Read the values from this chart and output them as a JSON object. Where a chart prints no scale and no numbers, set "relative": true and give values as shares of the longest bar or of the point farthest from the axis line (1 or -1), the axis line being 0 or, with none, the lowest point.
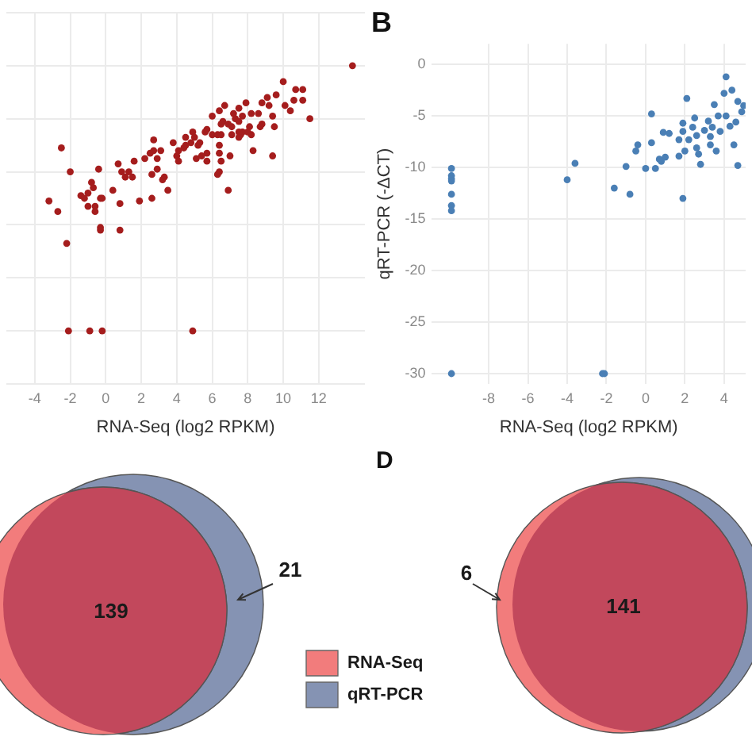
{
  "chart_data": [
    {
      "type": "scatter",
      "xlabel": "RNA-Seq (log2 RPKM)",
      "relative": true,
      "xlim": [
        -5.6,
        14.6
      ],
      "xticks": [
        -4,
        -2,
        0,
        2,
        4,
        6,
        8,
        10,
        12
      ],
      "grid": true,
      "marker": "circle",
      "color": "#a51d1d",
      "x": [
        13.9,
        10.0,
        10.7,
        11.1,
        9.6,
        9.1,
        7.9,
        11.1,
        10.6,
        8.8,
        10.1,
        6.7,
        7.5,
        9.2,
        10.4,
        6.4,
        7.2,
        8.2,
        8.6,
        7.7,
        6.0,
        9.4,
        7.3,
        11.5,
        6.6,
        6.9,
        7.5,
        8.8,
        8.1,
        9.5,
        7.1,
        8.7,
        6.5,
        5.7,
        7.7,
        7.5,
        8.0,
        7.1,
        7.6,
        8.2,
        6.0,
        6.3,
        5.6,
        4.9,
        7.5,
        4.5,
        5.0,
        6.5,
        5.3,
        4.8,
        3.8,
        2.7,
        4.5,
        5.2,
        6.4,
        4.4,
        2.7,
        3.1,
        2.5,
        2.2,
        4.1,
        4.0,
        6.4,
        8.3,
        5.7,
        5.4,
        7.0,
        9.4,
        5.1,
        1.6,
        2.9,
        5.7,
        6.5,
        4.1,
        -2.5,
        0.7,
        -0.4,
        2.9,
        2.6,
        0.9,
        1.3,
        1.5,
        1.1,
        3.3,
        3.2,
        6.4,
        6.3,
        -2.0,
        -0.8,
        -0.7,
        -1.0,
        -1.4,
        -1.2,
        -0.3,
        -0.2,
        0.4,
        2.6,
        3.5,
        6.9,
        -3.2,
        -1.0,
        -0.6,
        -0.6,
        0.8,
        1.9,
        -2.7,
        -0.3,
        -0.3,
        0.8,
        -2.2,
        -2.1,
        -0.9,
        -0.2,
        4.9
      ],
      "values": [
        1.0,
        0.94,
        0.91,
        0.91,
        0.89,
        0.88,
        0.86,
        0.87,
        0.87,
        0.86,
        0.85,
        0.85,
        0.84,
        0.85,
        0.83,
        0.83,
        0.82,
        0.82,
        0.82,
        0.81,
        0.81,
        0.81,
        0.8,
        0.8,
        0.79,
        0.78,
        0.79,
        0.78,
        0.77,
        0.77,
        0.77,
        0.77,
        0.78,
        0.76,
        0.75,
        0.75,
        0.75,
        0.74,
        0.74,
        0.74,
        0.74,
        0.74,
        0.75,
        0.75,
        0.73,
        0.73,
        0.73,
        0.74,
        0.71,
        0.71,
        0.71,
        0.72,
        0.7,
        0.7,
        0.7,
        0.69,
        0.68,
        0.68,
        0.67,
        0.65,
        0.68,
        0.66,
        0.67,
        0.68,
        0.67,
        0.66,
        0.66,
        0.66,
        0.65,
        0.64,
        0.65,
        0.64,
        0.64,
        0.64,
        0.69,
        0.63,
        0.61,
        0.61,
        0.59,
        0.6,
        0.6,
        0.58,
        0.58,
        0.58,
        0.57,
        0.6,
        0.59,
        0.6,
        0.56,
        0.54,
        0.52,
        0.51,
        0.5,
        0.5,
        0.5,
        0.53,
        0.5,
        0.53,
        0.53,
        0.49,
        0.47,
        0.47,
        0.45,
        0.48,
        0.49,
        0.45,
        0.39,
        0.38,
        0.38,
        0.33,
        0,
        0,
        0,
        0
      ]
    },
    {
      "type": "scatter",
      "title": "B",
      "xlabel": "RNA-Seq (log2 RPKM)",
      "ylabel": "qRT-PCR (-ΔCT)",
      "xlim": [
        -10.9,
        5.1
      ],
      "xticks": [
        -8,
        -6,
        -4,
        -2,
        0,
        2,
        4
      ],
      "ylim": [
        -31,
        2
      ],
      "yticks": [
        0,
        -5,
        -10,
        -15,
        -20,
        -25,
        -30
      ],
      "grid": true,
      "marker": "circle",
      "color": "#4a7fb5",
      "x": [
        -9.9,
        -9.9,
        -9.9,
        -9.9,
        -9.9,
        -9.9,
        -9.9,
        -9.9,
        -2.2,
        -2.1,
        -4.0,
        -3.6,
        -1.6,
        -1.0,
        -0.8,
        -0.5,
        -0.4,
        0.0,
        0.3,
        0.3,
        0.5,
        0.7,
        0.8,
        0.9,
        1.2,
        1.0,
        1.7,
        1.9,
        1.9,
        1.9,
        2.1,
        2.0,
        2.2,
        2.4,
        2.6,
        2.6,
        2.7,
        2.8,
        3.0,
        3.2,
        3.3,
        3.4,
        3.5,
        3.6,
        3.7,
        3.8,
        4.0,
        4.1,
        4.1,
        4.3,
        4.4,
        4.5,
        4.6,
        4.7,
        4.7,
        4.9,
        5.0,
        2.5,
        1.7,
        3.3
      ],
      "values": [
        -10.1,
        -10.8,
        -11.1,
        -11.3,
        -12.6,
        -13.7,
        -14.2,
        -30.0,
        -30.0,
        -30.0,
        -11.2,
        -9.6,
        -12.0,
        -9.9,
        -12.6,
        -8.4,
        -7.8,
        -10.1,
        -4.8,
        -7.6,
        -10.1,
        -9.2,
        -9.4,
        -6.6,
        -6.7,
        -9.0,
        -8.9,
        -6.5,
        -5.7,
        -13.0,
        -3.3,
        -8.4,
        -7.3,
        -6.1,
        -8.1,
        -6.9,
        -8.7,
        -9.7,
        -6.4,
        -5.5,
        -7.0,
        -6.1,
        -3.9,
        -8.4,
        -5.0,
        -6.5,
        -2.8,
        -1.2,
        -5.0,
        -6.0,
        -2.5,
        -7.8,
        -5.6,
        -9.8,
        -3.6,
        -4.6,
        -4.0,
        -5.2,
        -7.3,
        -7.8
      ]
    },
    {
      "type": "other",
      "annotations": [
        "139",
        "21"
      ],
      "legend": "right",
      "colors": [
        "#c2485c"
      ],
      "series": [
        {
          "name": "RNA-Seq",
          "color": "#f27c7c"
        },
        {
          "name": "qRT-PCR",
          "color": "#8593b3"
        }
      ]
    },
    {
      "type": "other",
      "title": "D",
      "annotations": [
        "141",
        "6"
      ],
      "colors": [
        "#c2485c"
      ],
      "series": [
        {
          "color": "#f27c7c"
        },
        {
          "color": "#8593b3"
        }
      ]
    }
  ]
}
